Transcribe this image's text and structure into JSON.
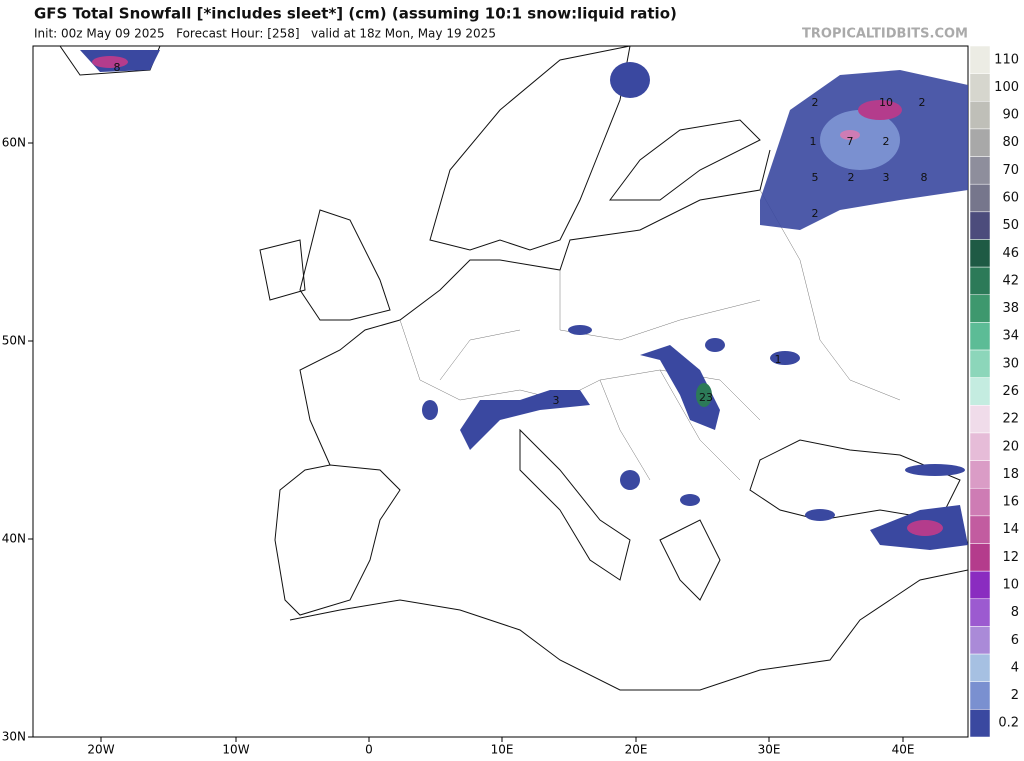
{
  "header": {
    "title": "GFS Total Snowfall [*includes sleet*] (cm) (assuming 10:1 snow:liquid ratio)",
    "subtitle": "Init: 00z May 09 2025   Forecast Hour: [258]   valid at 18z Mon, May 19 2025",
    "watermark": "TROPICALTIDBITS.COM"
  },
  "map": {
    "lat_labels": [
      "60N",
      "50N",
      "40N",
      "30N"
    ],
    "lon_labels": [
      "20W",
      "10W",
      "0",
      "10E",
      "20E",
      "30E",
      "40E"
    ],
    "contour_labels": [
      "8",
      "2",
      "10",
      "2",
      "1",
      "7",
      "2",
      "5",
      "2",
      "3",
      "8",
      "2",
      "3",
      "1",
      "23"
    ]
  },
  "colorbar": {
    "labels": [
      110,
      100,
      90,
      80,
      70,
      60,
      50,
      46,
      42,
      38,
      34,
      30,
      26,
      22,
      20,
      18,
      16,
      14,
      12,
      10,
      8,
      6,
      4,
      2,
      0.2
    ],
    "colors": [
      "#ececE4",
      "#d6d6ce",
      "#bfbfb8",
      "#a8a8a8",
      "#8e8e9c",
      "#76768c",
      "#4c4c7c",
      "#1e5a44",
      "#2c7a58",
      "#3e986e",
      "#5cbc96",
      "#8cd6ba",
      "#c4ece0",
      "#f0dcea",
      "#e6bcd8",
      "#da9cc6",
      "#ce7cb4",
      "#c25ca0",
      "#b43c8c",
      "#8a2cc0",
      "#9c5ad0",
      "#aa8ad8",
      "#a6c0e2",
      "#7a90d0",
      "#3a48a0"
    ]
  }
}
